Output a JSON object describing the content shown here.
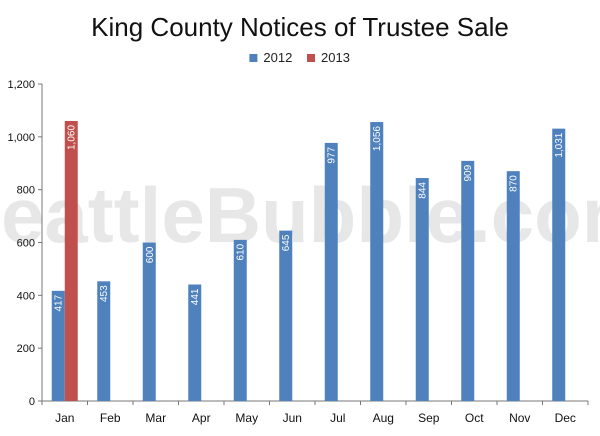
{
  "chart_data": {
    "type": "bar",
    "title": "King County Notices of Trustee Sale",
    "categories": [
      "Jan",
      "Feb",
      "Mar",
      "Apr",
      "May",
      "Jun",
      "Jul",
      "Aug",
      "Sep",
      "Oct",
      "Nov",
      "Dec"
    ],
    "series": [
      {
        "name": "2012",
        "color": "#4F81BD",
        "values": [
          417,
          453,
          600,
          441,
          610,
          645,
          977,
          1056,
          844,
          909,
          870,
          1031
        ],
        "labels": [
          "417",
          "453",
          "600",
          "441",
          "610",
          "645",
          "977",
          "1,056",
          "844",
          "909",
          "870",
          "1,031"
        ]
      },
      {
        "name": "2013",
        "color": "#C0504D",
        "values": [
          1060,
          null,
          null,
          null,
          null,
          null,
          null,
          null,
          null,
          null,
          null,
          null
        ],
        "labels": [
          "1,060",
          "",
          "",
          "",
          "",
          "",
          "",
          "",
          "",
          "",
          "",
          ""
        ]
      }
    ],
    "ylim": [
      0,
      1200
    ],
    "yticks": [
      0,
      200,
      400,
      600,
      800,
      1000,
      1200
    ],
    "yticklabels": [
      "0",
      "200",
      "400",
      "600",
      "800",
      "1,000",
      "1,200"
    ],
    "grid": false,
    "legend": "top-center",
    "watermark": "SeattleBubble.com"
  }
}
